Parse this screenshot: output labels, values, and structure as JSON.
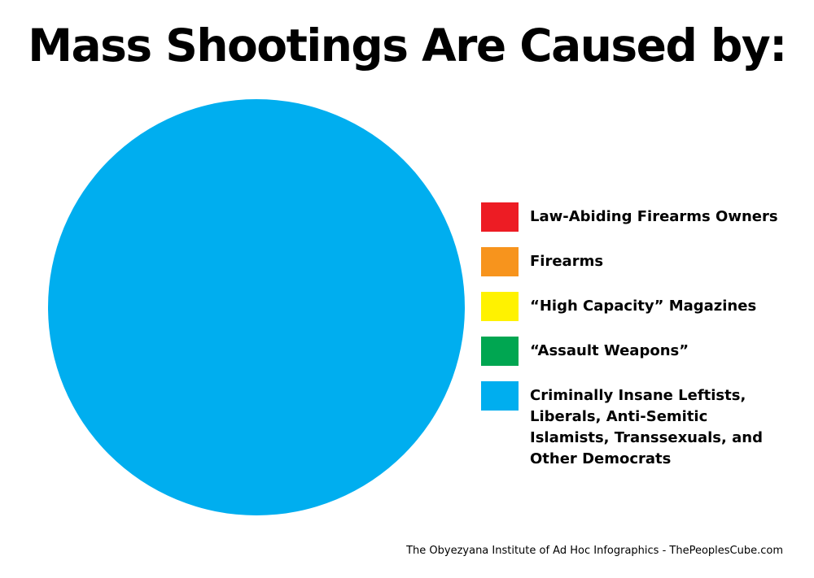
{
  "chart_data": {
    "type": "pie",
    "title": "Mass Shootings Are Caused by:",
    "categories": [
      "Law-Abiding Firearms Owners",
      "Firearms",
      "“High Capacity” Magazines",
      "“Assault Weapons”",
      "Criminally Insane Leftists, Liberals, Anti-Semitic Islamists, Transsexuals, and Other Democrats"
    ],
    "values": [
      0,
      0,
      0,
      0,
      100
    ],
    "colors": [
      "#ed1c24",
      "#f7941d",
      "#fff200",
      "#00a651",
      "#00aeef"
    ],
    "legend": "right",
    "source": "The Obyezyana Institute of Ad Hoc Infographics - ThePeoplesCube.com"
  }
}
